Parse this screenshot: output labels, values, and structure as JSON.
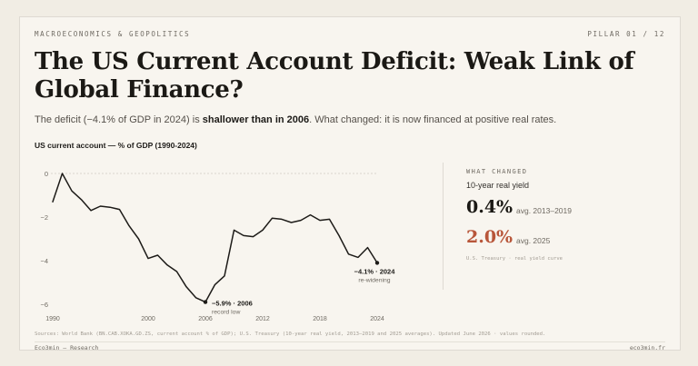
{
  "header": {
    "kicker": "MACROECONOMICS & GEOPOLITICS",
    "pillar": "PILLAR 01 / 12"
  },
  "title": "The US Current Account Deficit: Weak Link of Global Finance?",
  "subtitle": {
    "lead": "The deficit (−4.1% of GDP in 2024) is ",
    "bold": "shallower than in 2006",
    "tail": ". What changed: it is now financed at positive real rates."
  },
  "chart_data": {
    "type": "line",
    "title": "US current account — % of GDP (1990-2024)",
    "xlabel": "",
    "ylabel": "",
    "xlim": [
      1990,
      2024
    ],
    "ylim": [
      -6.5,
      0.5
    ],
    "x_ticks": [
      1990,
      2000,
      2006,
      2012,
      2018,
      2024
    ],
    "y_ticks": [
      0,
      -2,
      -4,
      -6
    ],
    "y_tick_labels": [
      "0",
      "−2",
      "−4",
      "−6"
    ],
    "grid": "dashed-zero-line-only",
    "color": "#1d1b18",
    "series": [
      {
        "x": [
          1990,
          1991,
          1992,
          1993,
          1994,
          1995,
          1996,
          1997,
          1998,
          1999,
          2000,
          2001,
          2002,
          2003,
          2004,
          2005,
          2006,
          2007,
          2008,
          2009,
          2010,
          2011,
          2012,
          2013,
          2014,
          2015,
          2016,
          2017,
          2018,
          2019,
          2020,
          2021,
          2022,
          2023,
          2024
        ],
        "values": [
          -1.3,
          0.0,
          -0.8,
          -1.2,
          -1.7,
          -1.5,
          -1.55,
          -1.65,
          -2.4,
          -3.0,
          -3.9,
          -3.75,
          -4.2,
          -4.5,
          -5.2,
          -5.7,
          -5.9,
          -5.1,
          -4.7,
          -2.6,
          -2.85,
          -2.9,
          -2.6,
          -2.05,
          -2.1,
          -2.25,
          -2.15,
          -1.9,
          -2.15,
          -2.1,
          -2.85,
          -3.7,
          -3.85,
          -3.4,
          -4.1
        ]
      }
    ],
    "annotations": [
      {
        "x": 2006,
        "y": -5.9,
        "label": "−5.9% · 2006",
        "note": "record low"
      },
      {
        "x": 2024,
        "y": -4.1,
        "label": "−4.1% · 2024",
        "note": "re-widening"
      }
    ]
  },
  "panel": {
    "label": "WHAT CHANGED",
    "subtitle": "10-year real yield",
    "stat1_value": "0.4%",
    "stat1_note": "avg. 2013–2019",
    "stat2_value": "2.0%",
    "stat2_note": "avg. 2025",
    "source": "U.S. Treasury · real yield curve",
    "accent": "#b8563a"
  },
  "sources": "Sources: World Bank (BN.CAB.XOKA.GD.ZS, current account % of GDP); U.S. Treasury (10-year real yield, 2013–2019 and 2025 averages). Updated June 2026 · values rounded.",
  "footer": {
    "left": "Eco3min — Research",
    "right": "eco3min.fr"
  }
}
